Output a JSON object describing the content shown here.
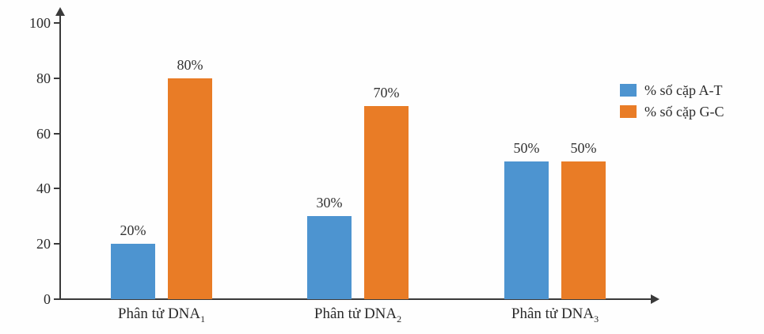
{
  "chart_data": {
    "type": "bar",
    "title": "",
    "xlabel": "",
    "ylabel": "",
    "categories": [
      {
        "text": "Phân tử DNA",
        "sub": "1"
      },
      {
        "text": "Phân tử DNA",
        "sub": "2"
      },
      {
        "text": "Phân tử DNA",
        "sub": "3"
      }
    ],
    "series": [
      {
        "name": "% số cặp A-T",
        "color": "#4D94D0",
        "values": [
          20,
          30,
          50
        ]
      },
      {
        "name": "% số cặp G-C",
        "color": "#E97C26",
        "values": [
          80,
          70,
          50
        ]
      }
    ],
    "value_labels": [
      [
        "20%",
        "80%"
      ],
      [
        "30%",
        "70%"
      ],
      [
        "50%",
        "50%"
      ]
    ],
    "yticks": [
      0,
      20,
      40,
      60,
      80,
      100
    ],
    "ylim": [
      0,
      100
    ],
    "grid": false,
    "legend_position": "right",
    "axis_color": "#3a3a3a"
  }
}
